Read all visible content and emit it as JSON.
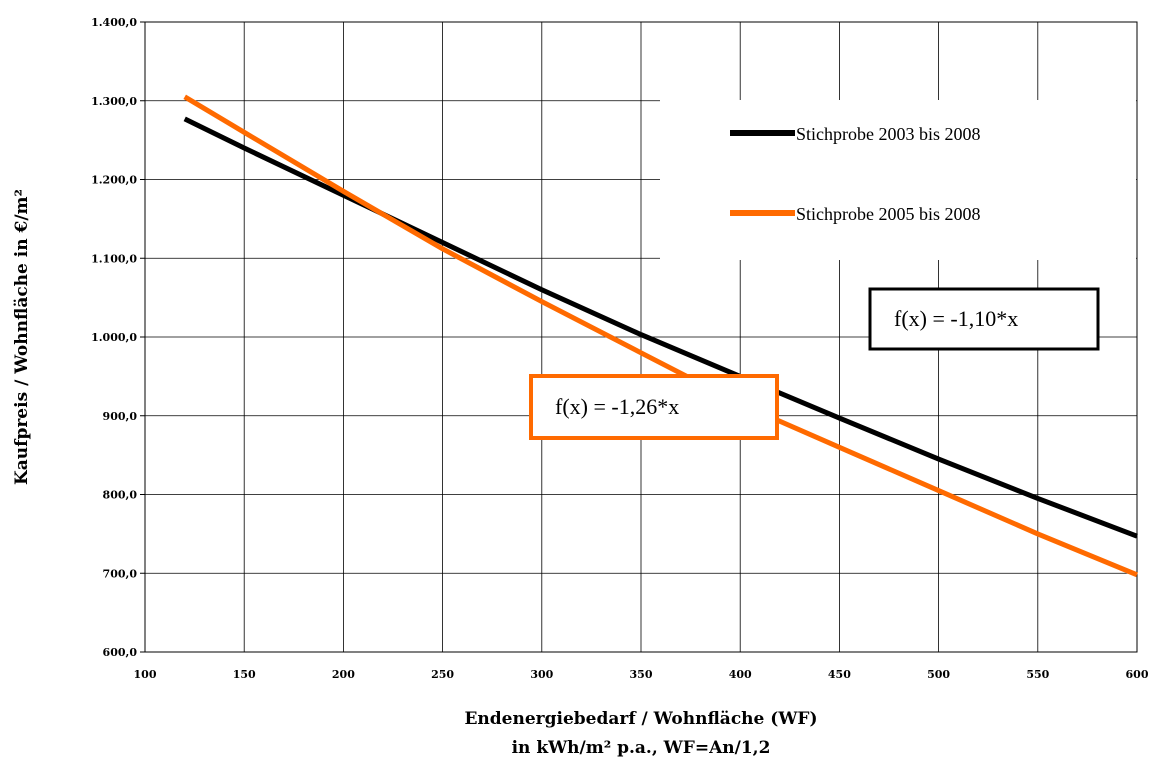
{
  "chart_data": {
    "type": "line",
    "xlabel_lines": [
      "Endenergiebedarf / Wohnfläche (WF)",
      "in kWh/m² p.a., WF=An/1,2"
    ],
    "ylabel": "Kaufpreis / Wohnfläche in €/m²",
    "xlim": [
      100,
      600
    ],
    "ylim": [
      600,
      1400
    ],
    "x_ticks": [
      "100",
      "150",
      "200",
      "250",
      "300",
      "350",
      "400",
      "450",
      "500",
      "550",
      "600"
    ],
    "y_ticks": [
      "600,0",
      "700,0",
      "800,0",
      "900,0",
      "1.000,0",
      "1.100,0",
      "1.200,0",
      "1.300,0",
      "1.400,0"
    ],
    "grid": true,
    "legend_position": "top-right",
    "series": [
      {
        "name": "Stichprobe 2003 bis 2008",
        "color": "#000000",
        "x": [
          120,
          150,
          200,
          250,
          300,
          350,
          400,
          450,
          500,
          550,
          600
        ],
        "y": [
          1277,
          1240,
          1180,
          1120,
          1060,
          1003,
          950,
          897,
          845,
          795,
          747
        ]
      },
      {
        "name": "Stichprobe 2005 bis 2008",
        "color": "#FF6A00",
        "x": [
          120,
          150,
          200,
          250,
          300,
          350,
          400,
          450,
          500,
          550,
          600
        ],
        "y": [
          1305,
          1260,
          1185,
          1112,
          1045,
          980,
          915,
          860,
          805,
          750,
          698
        ]
      }
    ],
    "annotations": [
      {
        "text": "f(x) = -1,10*x",
        "color": "#000000"
      },
      {
        "text": "f(x) = -1,26*x",
        "color": "#FF6A00"
      }
    ]
  }
}
